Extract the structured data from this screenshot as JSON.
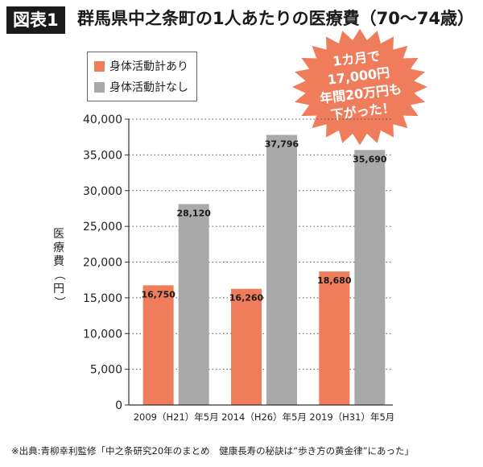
{
  "figure_label": "図表1",
  "chart_data": {
    "type": "bar",
    "title": "群馬県中之条町の1人あたりの医療費（70〜74歳）",
    "ylabel": "医療費（円）",
    "categories": [
      "2009（H21）年5月",
      "2014（H26）年5月",
      "2019（H31）年5月"
    ],
    "series": [
      {
        "name": "身体活動計あり",
        "color": "#ef7d5c",
        "values": [
          16750,
          16260,
          18680
        ]
      },
      {
        "name": "身体活動計なし",
        "color": "#a9a9a9",
        "values": [
          28120,
          37796,
          35690
        ]
      }
    ],
    "ylim": [
      0,
      40000
    ],
    "yticks": [
      0,
      5000,
      10000,
      15000,
      20000,
      25000,
      30000,
      35000,
      40000
    ],
    "ytick_labels": [
      "0",
      "5,000",
      "10,000",
      "15,000",
      "20,000",
      "25,000",
      "30,000",
      "35,000",
      "40,000"
    ],
    "data_labels": [
      [
        "16,750",
        "16,260",
        "18,680"
      ],
      [
        "28,120",
        "37,796",
        "35,690"
      ]
    ],
    "grid": "dotted-horizontal",
    "legend_position": "top-left"
  },
  "callout": {
    "lines": [
      "1カ月で",
      "17,000円",
      "年間20万円も",
      "下がった！"
    ],
    "color": "#ef7d5c"
  },
  "source_note": "※出典:青柳幸利監修「中之条研究20年のまとめ　健康長寿の秘訣は“歩き方の黄金律”にあった」"
}
